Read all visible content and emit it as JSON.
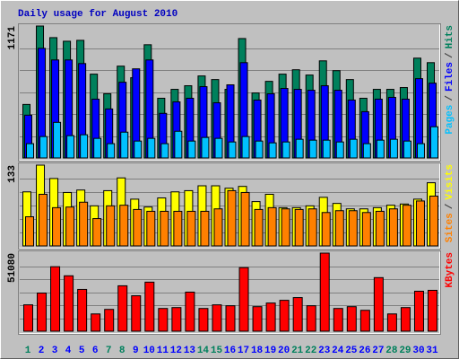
{
  "chart_data": {
    "type": "bar",
    "title": "Daily usage for August 2010",
    "categories": [
      "1",
      "2",
      "3",
      "4",
      "5",
      "6",
      "7",
      "8",
      "9",
      "10",
      "11",
      "12",
      "13",
      "14",
      "15",
      "16",
      "17",
      "18",
      "19",
      "20",
      "21",
      "22",
      "23",
      "24",
      "25",
      "26",
      "27",
      "28",
      "29",
      "30",
      "31"
    ],
    "category_colors": [
      "#00805c",
      "#0000ff",
      "#0000ff",
      "#0000ff",
      "#0000ff",
      "#0000ff",
      "#00805c",
      "#00805c",
      "#0000ff",
      "#0000ff",
      "#0000ff",
      "#0000ff",
      "#0000ff",
      "#00805c",
      "#00805c",
      "#0000ff",
      "#0000ff",
      "#0000ff",
      "#0000ff",
      "#0000ff",
      "#00805c",
      "#00805c",
      "#0000ff",
      "#0000ff",
      "#0000ff",
      "#0000ff",
      "#0000ff",
      "#00805c",
      "#00805c",
      "#0000ff",
      "#0000ff"
    ],
    "legend_separator": "/",
    "grid_divisions": 6,
    "panels": [
      {
        "ylim": [
          0,
          1171
        ],
        "yticks": [
          1171
        ],
        "series": [
          {
            "name": "Hits",
            "color": "#00805c",
            "values": [
              475,
              1171,
              1068,
              1036,
              1044,
              744,
              570,
              815,
              712,
              1005,
              530,
              609,
              641,
              728,
              696,
              609,
              1060,
              577,
              680,
              744,
              783,
              736,
              862,
              775,
              696,
              530,
              609,
              609,
              625,
              886,
              846
            ]
          },
          {
            "name": "Files",
            "color": "#0000ff",
            "values": [
              380,
              973,
              870,
              870,
              838,
              522,
              435,
              672,
              791,
              870,
              396,
              498,
              530,
              633,
              490,
              649,
              846,
              514,
              570,
              617,
              609,
              601,
              641,
              601,
              514,
              411,
              522,
              538,
              522,
              704,
              664
            ]
          },
          {
            "name": "Pages",
            "color": "#00c0ff",
            "values": [
              127,
              190,
              316,
              198,
              206,
              174,
              127,
              229,
              150,
              174,
              127,
              237,
              150,
              182,
              174,
              142,
              190,
              150,
              134,
              142,
              166,
              158,
              158,
              142,
              166,
              127,
              158,
              166,
              150,
              127,
              277
            ]
          }
        ]
      },
      {
        "ylim": [
          0,
          133
        ],
        "yticks": [
          133
        ],
        "series": [
          {
            "name": "Visits",
            "color": "#ffff00",
            "values": [
              89,
              133,
              111,
              88,
              92,
              66,
              91,
              112,
              77,
              64,
              79,
              89,
              91,
              99,
              99,
              95,
              98,
              73,
              85,
              63,
              63,
              66,
              80,
              70,
              61,
              61,
              63,
              67,
              69,
              77,
              104
            ]
          },
          {
            "name": "Sites",
            "color": "#ff8000",
            "values": [
              48,
              85,
              63,
              64,
              72,
              45,
              66,
              67,
              60,
              57,
              57,
              57,
              57,
              57,
              61,
              91,
              88,
              60,
              63,
              61,
              60,
              61,
              55,
              58,
              58,
              55,
              57,
              61,
              67,
              74,
              82
            ]
          }
        ]
      },
      {
        "ylim": [
          0,
          51080
        ],
        "yticks": [
          51080
        ],
        "series": [
          {
            "name": "KBytes",
            "color": "#ff0000",
            "values": [
              17226,
              24948,
              42174,
              36234,
              27324,
              11286,
              14256,
              29700,
              23166,
              32076,
              14850,
              15444,
              25542,
              14850,
              17226,
              16632,
              41580,
              16038,
              18414,
              20196,
              21978,
              16632,
              51080,
              14850,
              16038,
              13662,
              35046,
              11286,
              15444,
              26136,
              26730
            ]
          }
        ]
      }
    ]
  }
}
